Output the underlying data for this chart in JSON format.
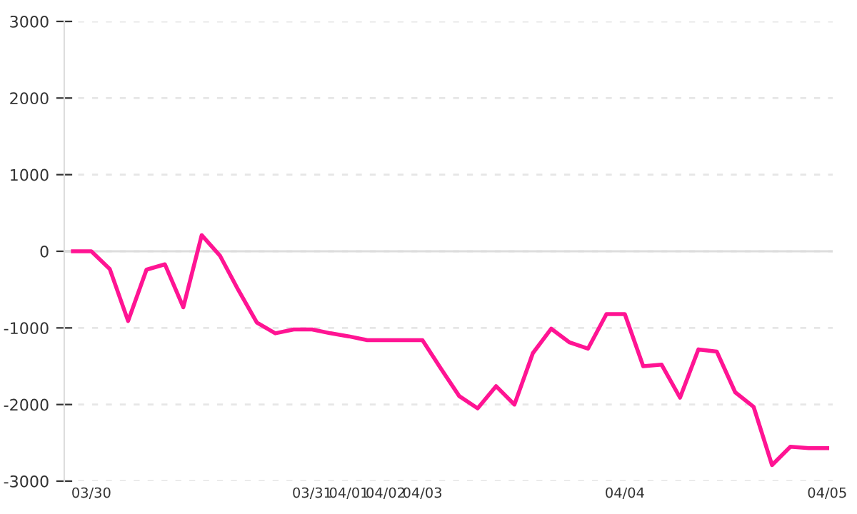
{
  "chart_data": {
    "type": "line",
    "categories": [
      null,
      "03/30",
      null,
      null,
      null,
      null,
      null,
      null,
      null,
      null,
      null,
      null,
      null,
      "03/31",
      null,
      "04/01",
      null,
      "04/02",
      null,
      "04/03",
      null,
      null,
      null,
      null,
      null,
      null,
      null,
      null,
      null,
      null,
      "04/04",
      null,
      null,
      null,
      null,
      null,
      null,
      null,
      null,
      null,
      null,
      "04/05"
    ],
    "series": [
      {
        "color": "#ff1493",
        "values": [
          0,
          0,
          -230,
          -910,
          -240,
          -170,
          -730,
          210,
          -60,
          -510,
          -930,
          -1070,
          -1020,
          -1020,
          -1070,
          -1110,
          -1160,
          -1160,
          -1160,
          -1160,
          -1530,
          -1890,
          -2050,
          -1760,
          -2000,
          -1330,
          -1010,
          -1190,
          -1270,
          -820,
          -820,
          -1500,
          -1480,
          -1910,
          -1280,
          -1310,
          -1840,
          -2030,
          -2790,
          -2550,
          -2570,
          -2570
        ]
      }
    ],
    "ylim": [
      -3000,
      3000
    ],
    "yticks": [
      -3000,
      -2000,
      -1000,
      0,
      1000,
      2000,
      3000
    ],
    "ref_lines": [
      {
        "axis": "y",
        "value": 0,
        "color": "#dddddd",
        "line_style": "solid"
      }
    ],
    "grid": "y",
    "marker": "none",
    "line_style": "solid"
  }
}
